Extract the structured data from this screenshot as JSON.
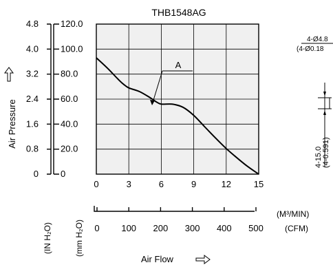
{
  "chart_data": {
    "type": "line",
    "title": "THB1548AG",
    "x_axis_label": "Air Flow",
    "x_axis_units": {
      "primary": "(M³/MIN)",
      "secondary": "(CFM)"
    },
    "y_axis_label": "Air Pressure",
    "y_axis_units": {
      "inner": "(mm H₂O)",
      "outer": "(IN H₂O)"
    },
    "xlim": [
      0,
      15
    ],
    "ylim": [
      0,
      120
    ],
    "x_ticks": [
      "0",
      "3",
      "6",
      "9",
      "12",
      "15"
    ],
    "x_ticks_cfm": [
      "0",
      "100",
      "200",
      "300",
      "400",
      "500"
    ],
    "y_ticks_mm": [
      "0",
      "20.0",
      "40.0",
      "60.0",
      "80.0",
      "100.0",
      "120.0"
    ],
    "y_ticks_in": [
      "0",
      "0.8",
      "1.6",
      "2.4",
      "3.2",
      "4.0",
      "4.8"
    ],
    "grid": true,
    "series": [
      {
        "name": "A",
        "x": [
          0,
          1,
          2,
          2.5,
          3,
          4,
          5,
          5.5,
          6,
          7,
          8,
          9,
          10,
          11,
          12,
          13,
          14,
          15
        ],
        "y": [
          93,
          85,
          76,
          72,
          69,
          66,
          61,
          58,
          56,
          56,
          53.5,
          47,
          38,
          29,
          20.5,
          13,
          6,
          0
        ]
      }
    ]
  },
  "diagram_fragment": {
    "hole_label": "4-Ø4.8",
    "hole_label_inch": "(4-Ø0.18",
    "spacing_label": "4-15.0",
    "spacing_label_inch": "(4-0.591)"
  },
  "icons": {
    "y_arrow": "up-arrow-icon",
    "x_arrow": "right-arrow-icon"
  }
}
